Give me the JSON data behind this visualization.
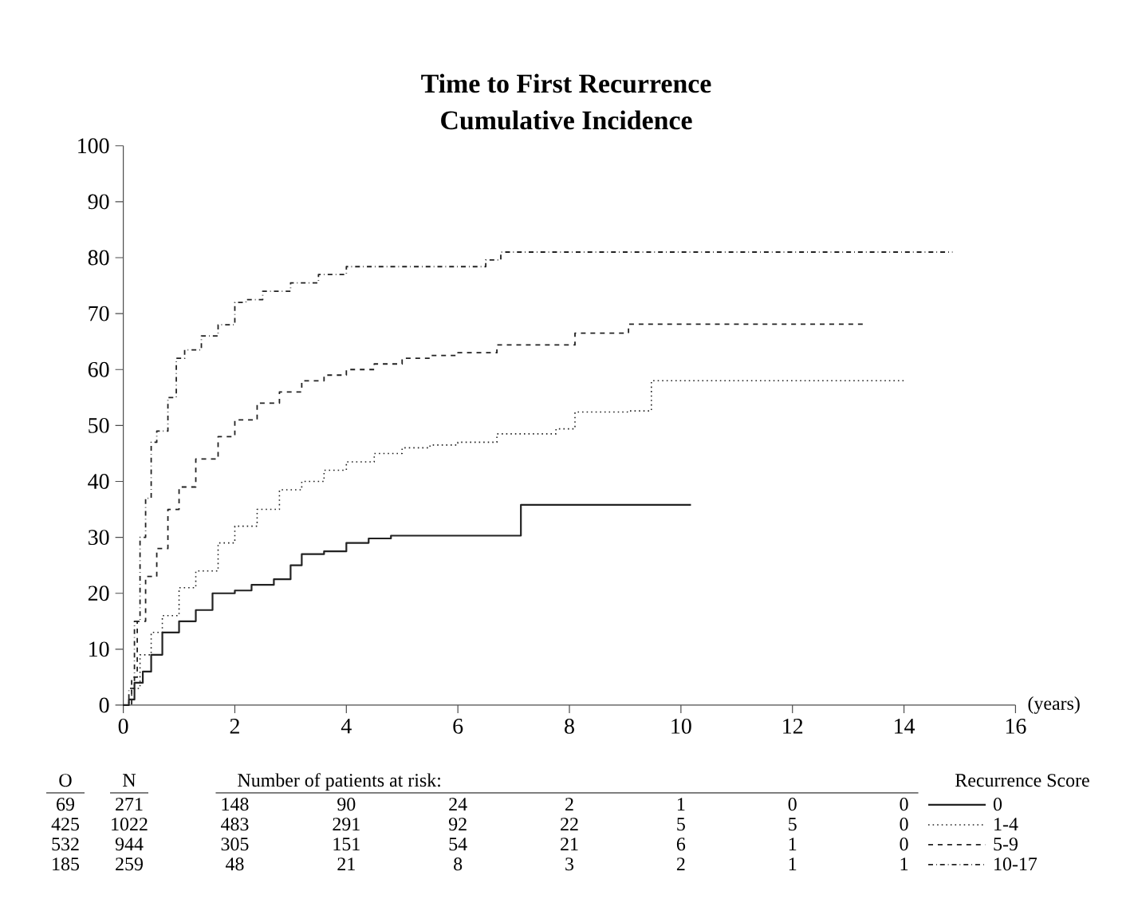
{
  "chart_data": {
    "type": "step",
    "title": "Time to First Recurrence",
    "subtitle": "Cumulative Incidence",
    "xlabel": "(years)",
    "legend_title": "Recurrence Score",
    "legend": "bottom right",
    "xlim": [
      0,
      16
    ],
    "xticks": [
      0,
      2,
      4,
      6,
      8,
      10,
      12,
      14,
      16
    ],
    "ylim": [
      0,
      100
    ],
    "yticks": [
      0,
      10,
      20,
      30,
      40,
      50,
      60,
      70,
      80,
      90,
      100
    ],
    "series": [
      {
        "name": "0",
        "color": "#222222",
        "line_style": "solid",
        "x": [
          0,
          0.1,
          0.2,
          0.35,
          0.5,
          0.7,
          1.0,
          1.3,
          1.6,
          2.0,
          2.3,
          2.7,
          3.0,
          3.2,
          3.6,
          4.0,
          4.4,
          4.8,
          7.13,
          10.18
        ],
        "values": [
          0,
          1,
          4,
          6,
          9,
          13,
          15,
          17,
          20,
          20.5,
          21.5,
          22.5,
          25,
          27,
          27.5,
          29,
          29.8,
          30.3,
          35.8,
          35.8
        ]
      },
      {
        "name": "1-4",
        "color": "#222222",
        "line_style": "dotted",
        "x": [
          0,
          0.15,
          0.3,
          0.5,
          0.7,
          1.0,
          1.3,
          1.7,
          2.0,
          2.4,
          2.8,
          3.2,
          3.6,
          4.0,
          4.5,
          5.0,
          5.5,
          6.0,
          6.7,
          7.76,
          8.1,
          9.04,
          9.47,
          14.0
        ],
        "values": [
          0,
          3,
          9,
          13,
          16,
          21,
          24,
          29,
          32,
          35,
          38.5,
          40,
          42,
          43.5,
          45,
          46,
          46.5,
          47,
          48.5,
          49.4,
          52.4,
          52.6,
          58,
          58
        ]
      },
      {
        "name": "5-9",
        "color": "#222222",
        "line_style": "dashed",
        "x": [
          0,
          0.15,
          0.25,
          0.4,
          0.6,
          0.8,
          1.0,
          1.3,
          1.7,
          2.0,
          2.4,
          2.8,
          3.2,
          3.6,
          4.0,
          4.5,
          5.0,
          5.5,
          6.0,
          6.7,
          8.1,
          9.06,
          13.26
        ],
        "values": [
          0,
          5,
          15,
          23,
          28,
          35,
          39,
          44,
          48,
          51,
          54,
          56,
          58,
          59,
          60,
          61,
          62,
          62.5,
          63,
          64.4,
          66.5,
          68.1,
          68.1
        ]
      },
      {
        "name": "10-17",
        "color": "#222222",
        "line_style": "dashdot",
        "x": [
          0,
          0.1,
          0.2,
          0.3,
          0.4,
          0.5,
          0.6,
          0.8,
          0.95,
          1.1,
          1.4,
          1.7,
          2.0,
          2.2,
          2.5,
          3.0,
          3.5,
          4.0,
          6.5,
          6.77,
          14.87
        ],
        "values": [
          0,
          3,
          15,
          30,
          37,
          47,
          49,
          55,
          62,
          63.5,
          66,
          68,
          72,
          72.5,
          74,
          75.5,
          77,
          78.4,
          79.6,
          81,
          81
        ]
      }
    ],
    "annotations": [
      "Number of patients at risk:",
      "O",
      "N",
      "69",
      "271",
      "148",
      "90",
      "24",
      "2",
      "1",
      "0",
      "0",
      "425",
      "1022",
      "483",
      "291",
      "92",
      "22",
      "5",
      "5",
      "0",
      "532",
      "944",
      "305",
      "151",
      "54",
      "21",
      "6",
      "1",
      "0",
      "185",
      "259",
      "48",
      "21",
      "8",
      "3",
      "2",
      "1",
      "1"
    ]
  }
}
